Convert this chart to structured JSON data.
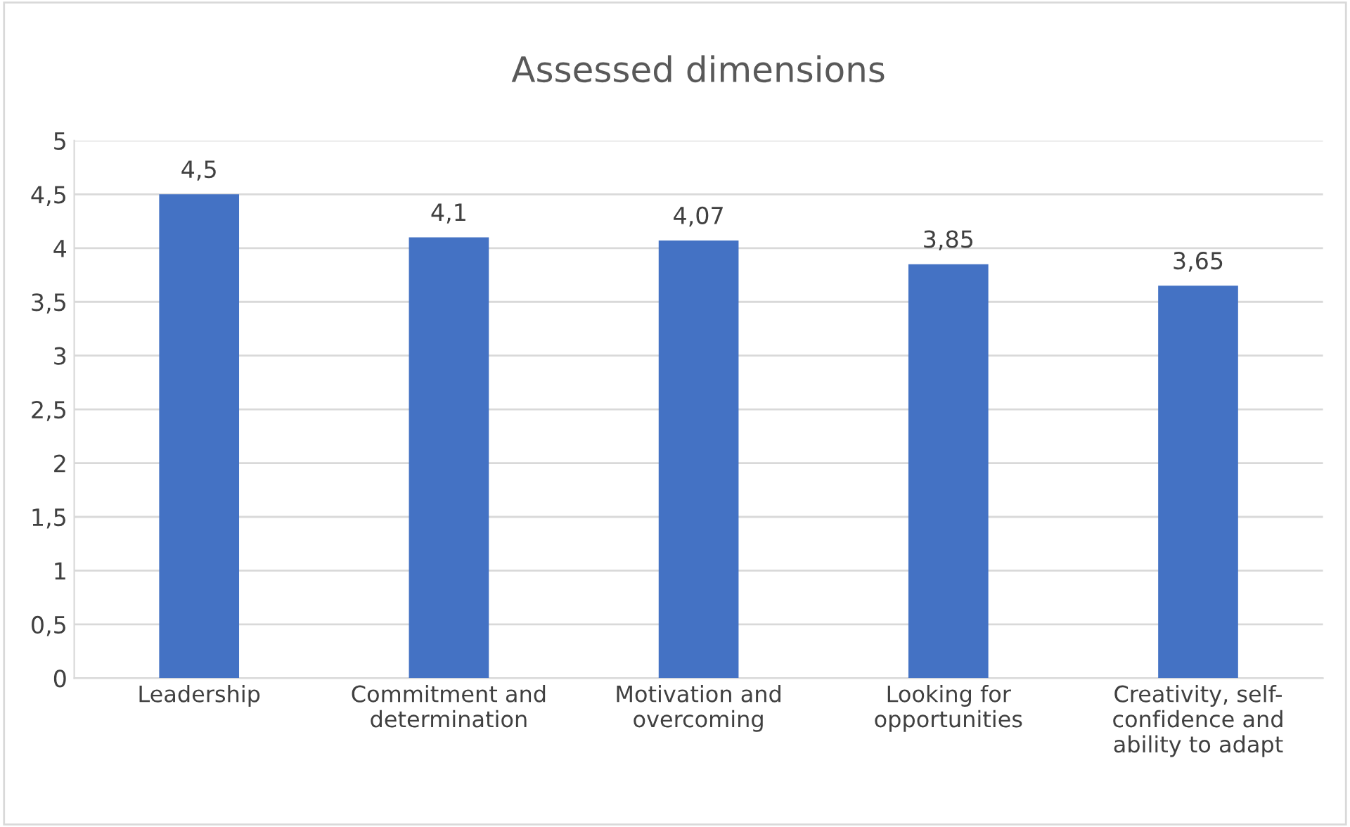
{
  "chart_data": {
    "type": "bar",
    "title": "Assessed dimensions",
    "categories": [
      "Leadership",
      "Commitment and\ndetermination",
      "Motivation and\novercoming",
      "Looking for\nopportunities",
      "Creativity, self-\nconfidence and\nability to adapt"
    ],
    "values": [
      4.5,
      4.1,
      4.07,
      3.85,
      3.65
    ],
    "value_labels": [
      "4,5",
      "4,1",
      "4,07",
      "3,85",
      "3,65"
    ],
    "color": "#4472c4",
    "ylim": [
      0,
      5
    ],
    "yticks": [
      0,
      {
        "value": 0.5,
        "label": "0,5"
      },
      1,
      {
        "value": 1.5,
        "label": "1,5"
      },
      2,
      {
        "value": 2.5,
        "label": "2,5"
      },
      3,
      {
        "value": 3.5,
        "label": "3,5"
      },
      4,
      {
        "value": 4.5,
        "label": "4,5"
      },
      5
    ],
    "grid": "y"
  }
}
